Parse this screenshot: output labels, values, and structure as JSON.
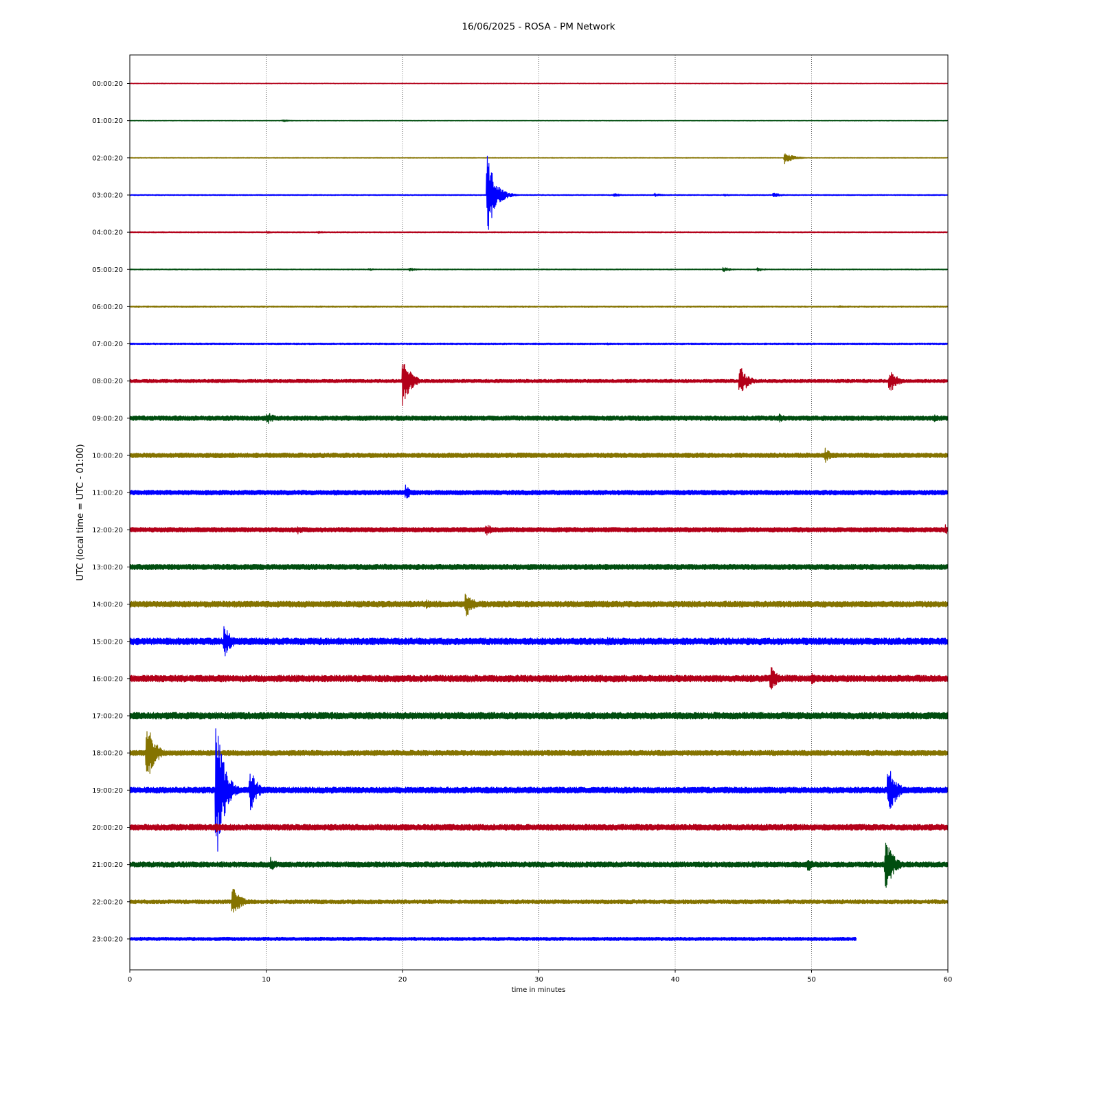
{
  "chart_data": {
    "type": "line",
    "title": "16/06/2025 - ROSA - PM Network",
    "xlabel": "time in minutes",
    "ylabel": "UTC (local time = UTC - 01:00)",
    "xlim": [
      0,
      60
    ],
    "x_ticks": [
      "0",
      "10",
      "20",
      "30",
      "40",
      "50",
      "60"
    ],
    "x_tick_values": [
      0,
      10,
      20,
      30,
      40,
      50,
      60
    ],
    "grid": "vertical dotted lines at x ticks",
    "colors": [
      "#b30019",
      "#004d0f",
      "#857300",
      "#0000ff"
    ],
    "series": [
      {
        "name": "00:00:20",
        "color": "#b30019",
        "end": 60,
        "noise": 0.5,
        "events": []
      },
      {
        "name": "01:00:20",
        "color": "#004d0f",
        "end": 60,
        "noise": 0.5,
        "events": [
          {
            "t": 11.2,
            "amp": 2
          }
        ]
      },
      {
        "name": "02:00:20",
        "color": "#857300",
        "end": 60,
        "noise": 0.5,
        "events": [
          {
            "t": 48.0,
            "amp": 10
          }
        ]
      },
      {
        "name": "03:00:20",
        "color": "#0000ff",
        "end": 60,
        "noise": 0.8,
        "events": [
          {
            "t": 26.2,
            "amp": 65
          },
          {
            "t": 35.5,
            "amp": 3
          },
          {
            "t": 38.5,
            "amp": 3
          },
          {
            "t": 43.6,
            "amp": 2
          },
          {
            "t": 47.2,
            "amp": 4
          }
        ]
      },
      {
        "name": "04:00:20",
        "color": "#b30019",
        "end": 60,
        "noise": 0.8,
        "events": [
          {
            "t": 10.0,
            "amp": 2
          },
          {
            "t": 13.8,
            "amp": 2
          }
        ]
      },
      {
        "name": "05:00:20",
        "color": "#004d0f",
        "end": 60,
        "noise": 0.8,
        "events": [
          {
            "t": 17.5,
            "amp": 2
          },
          {
            "t": 20.5,
            "amp": 3
          },
          {
            "t": 43.5,
            "amp": 4
          },
          {
            "t": 46.0,
            "amp": 3
          }
        ]
      },
      {
        "name": "06:00:20",
        "color": "#857300",
        "end": 60,
        "noise": 1.0,
        "events": [
          {
            "t": 52.0,
            "amp": 2
          }
        ]
      },
      {
        "name": "07:00:20",
        "color": "#0000ff",
        "end": 60,
        "noise": 1.2,
        "events": [
          {
            "t": 35.0,
            "amp": 2
          }
        ]
      },
      {
        "name": "08:00:20",
        "color": "#b30019",
        "end": 60,
        "noise": 2.5,
        "events": [
          {
            "t": 20.0,
            "amp": 40
          },
          {
            "t": 44.7,
            "amp": 26
          },
          {
            "t": 55.7,
            "amp": 20
          }
        ]
      },
      {
        "name": "09:00:20",
        "color": "#004d0f",
        "end": 60,
        "noise": 3.5,
        "events": [
          {
            "t": 10.0,
            "amp": 12
          },
          {
            "t": 47.6,
            "amp": 7
          },
          {
            "t": 59.0,
            "amp": 6
          }
        ]
      },
      {
        "name": "10:00:20",
        "color": "#857300",
        "end": 60,
        "noise": 3.5,
        "events": [
          {
            "t": 51.0,
            "amp": 11
          }
        ]
      },
      {
        "name": "11:00:20",
        "color": "#0000ff",
        "end": 60,
        "noise": 3.5,
        "events": [
          {
            "t": 20.2,
            "amp": 12
          },
          {
            "t": 15.0,
            "amp": 5
          }
        ]
      },
      {
        "name": "12:00:20",
        "color": "#b30019",
        "end": 60,
        "noise": 3.5,
        "events": [
          {
            "t": 12.3,
            "amp": 8
          },
          {
            "t": 26.1,
            "amp": 10
          },
          {
            "t": 59.8,
            "amp": 8
          }
        ]
      },
      {
        "name": "13:00:20",
        "color": "#004d0f",
        "end": 60,
        "noise": 4.0,
        "events": [
          {
            "t": 18.6,
            "amp": 6
          }
        ]
      },
      {
        "name": "14:00:20",
        "color": "#857300",
        "end": 60,
        "noise": 4.5,
        "events": [
          {
            "t": 21.7,
            "amp": 8
          },
          {
            "t": 24.6,
            "amp": 22
          }
        ]
      },
      {
        "name": "15:00:20",
        "color": "#0000ff",
        "end": 60,
        "noise": 5.0,
        "events": [
          {
            "t": 6.9,
            "amp": 25
          },
          {
            "t": 35.0,
            "amp": 7
          }
        ]
      },
      {
        "name": "16:00:20",
        "color": "#b30019",
        "end": 60,
        "noise": 5.0,
        "events": [
          {
            "t": 47.0,
            "amp": 20
          },
          {
            "t": 50.0,
            "amp": 9
          }
        ]
      },
      {
        "name": "17:00:20",
        "color": "#004d0f",
        "end": 60,
        "noise": 5.0,
        "events": [
          {
            "t": 0.3,
            "amp": 8
          },
          {
            "t": 14.1,
            "amp": 6
          }
        ]
      },
      {
        "name": "18:00:20",
        "color": "#857300",
        "end": 60,
        "noise": 4.0,
        "events": [
          {
            "t": 1.2,
            "amp": 55
          }
        ]
      },
      {
        "name": "19:00:20",
        "color": "#0000ff",
        "end": 60,
        "noise": 4.5,
        "events": [
          {
            "t": 6.3,
            "amp": 120
          },
          {
            "t": 8.8,
            "amp": 36
          },
          {
            "t": 55.6,
            "amp": 45
          }
        ]
      },
      {
        "name": "20:00:20",
        "color": "#b30019",
        "end": 60,
        "noise": 4.5,
        "events": [
          {
            "t": 6.3,
            "amp": 8
          }
        ]
      },
      {
        "name": "21:00:20",
        "color": "#004d0f",
        "end": 60,
        "noise": 4.0,
        "events": [
          {
            "t": 10.3,
            "amp": 12
          },
          {
            "t": 49.7,
            "amp": 12
          },
          {
            "t": 55.4,
            "amp": 45
          }
        ]
      },
      {
        "name": "22:00:20",
        "color": "#857300",
        "end": 60,
        "noise": 3.0,
        "events": [
          {
            "t": 7.5,
            "amp": 27
          },
          {
            "t": 16.3,
            "amp": 4
          }
        ]
      },
      {
        "name": "23:00:20",
        "color": "#0000ff",
        "end": 53.3,
        "noise": 2.5,
        "events": []
      }
    ]
  }
}
